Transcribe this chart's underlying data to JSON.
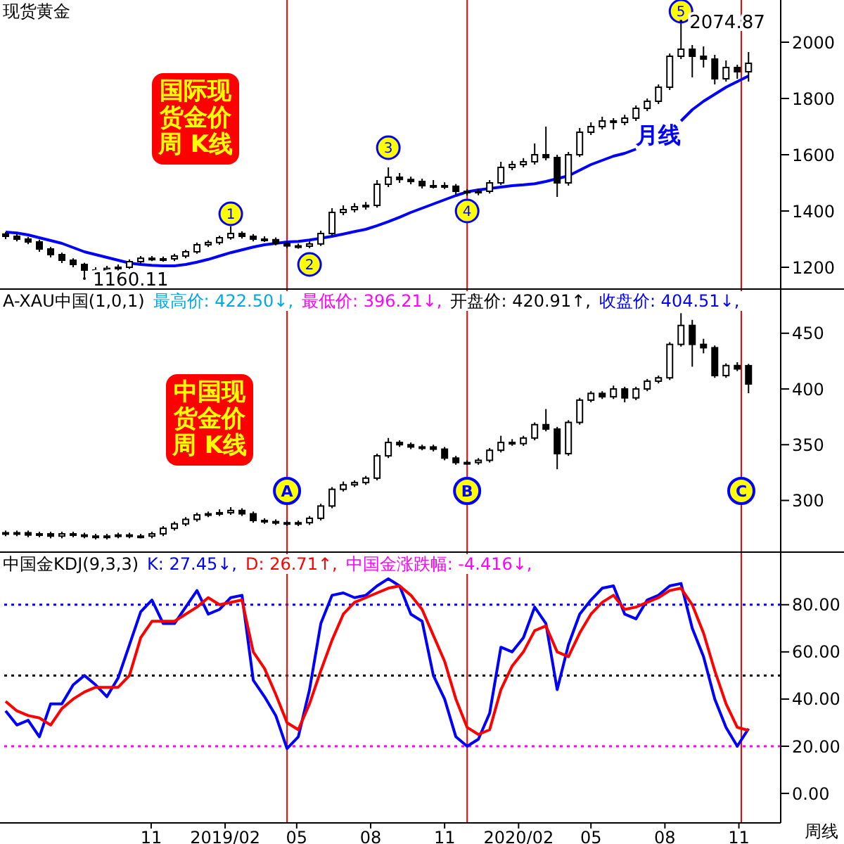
{
  "chart_data": [
    {
      "type": "candlestick",
      "title": "现货黄金",
      "subtitle": "国际现货金价周 K线",
      "color": "#000000",
      "tick_labels": "y",
      "x": [
        "2018-05-04",
        "2018-05-18",
        "2018-06-01",
        "2018-06-15",
        "2018-06-29",
        "2018-07-13",
        "2018-07-27",
        "2018-08-10",
        "2018-08-24",
        "2018-09-07",
        "2018-09-21",
        "2018-10-05",
        "2018-10-19",
        "2018-11-02",
        "2018-11-16",
        "2018-11-30",
        "2018-12-14",
        "2018-12-28",
        "2019-01-11",
        "2019-01-25",
        "2019-02-08",
        "2019-02-22",
        "2019-03-08",
        "2019-03-22",
        "2019-04-05",
        "2019-04-19",
        "2019-05-03",
        "2019-05-17",
        "2019-05-31",
        "2019-06-14",
        "2019-06-28",
        "2019-07-12",
        "2019-07-26",
        "2019-08-09",
        "2019-08-23",
        "2019-09-06",
        "2019-09-20",
        "2019-10-04",
        "2019-10-18",
        "2019-11-01",
        "2019-11-15",
        "2019-11-29",
        "2019-12-13",
        "2019-12-27",
        "2020-01-10",
        "2020-01-24",
        "2020-02-07",
        "2020-02-21",
        "2020-03-06",
        "2020-03-20",
        "2020-04-03",
        "2020-04-17",
        "2020-05-01",
        "2020-05-15",
        "2020-05-29",
        "2020-06-12",
        "2020-06-26",
        "2020-07-10",
        "2020-07-24",
        "2020-08-07",
        "2020-08-21",
        "2020-09-04",
        "2020-09-18",
        "2020-10-02",
        "2020-10-16",
        "2020-10-30",
        "2020-11-13"
      ],
      "ohlc": [
        [
          1318,
          1325,
          1300,
          1310
        ],
        [
          1310,
          1318,
          1292,
          1300
        ],
        [
          1300,
          1308,
          1282,
          1290
        ],
        [
          1290,
          1298,
          1255,
          1265
        ],
        [
          1265,
          1272,
          1235,
          1245
        ],
        [
          1245,
          1252,
          1215,
          1225
        ],
        [
          1225,
          1232,
          1200,
          1210
        ],
        [
          1210,
          1216,
          1160.11,
          1190
        ],
        [
          1190,
          1200,
          1180,
          1190
        ],
        [
          1190,
          1205,
          1185,
          1196
        ],
        [
          1196,
          1210,
          1188,
          1200
        ],
        [
          1200,
          1228,
          1194,
          1220
        ],
        [
          1220,
          1240,
          1212,
          1232
        ],
        [
          1232,
          1240,
          1222,
          1230
        ],
        [
          1230,
          1238,
          1220,
          1230
        ],
        [
          1230,
          1248,
          1222,
          1240
        ],
        [
          1240,
          1262,
          1232,
          1255
        ],
        [
          1255,
          1288,
          1248,
          1280
        ],
        [
          1280,
          1296,
          1272,
          1288
        ],
        [
          1288,
          1312,
          1280,
          1305
        ],
        [
          1305,
          1346,
          1298,
          1320
        ],
        [
          1320,
          1328,
          1302,
          1310
        ],
        [
          1310,
          1318,
          1292,
          1300
        ],
        [
          1300,
          1310,
          1290,
          1298
        ],
        [
          1298,
          1306,
          1278,
          1285
        ],
        [
          1285,
          1292,
          1268,
          1276
        ],
        [
          1276,
          1284,
          1266,
          1275
        ],
        [
          1275,
          1292,
          1268,
          1283
        ],
        [
          1283,
          1330,
          1276,
          1320
        ],
        [
          1320,
          1410,
          1312,
          1395
        ],
        [
          1395,
          1420,
          1385,
          1405
        ],
        [
          1405,
          1428,
          1395,
          1415
        ],
        [
          1415,
          1432,
          1405,
          1420
        ],
        [
          1420,
          1510,
          1412,
          1495
        ],
        [
          1495,
          1555,
          1485,
          1520
        ],
        [
          1520,
          1535,
          1500,
          1512
        ],
        [
          1512,
          1522,
          1495,
          1505
        ],
        [
          1505,
          1515,
          1480,
          1490
        ],
        [
          1490,
          1510,
          1480,
          1490
        ],
        [
          1490,
          1502,
          1478,
          1488
        ],
        [
          1488,
          1496,
          1458,
          1470
        ],
        [
          1470,
          1478,
          1455,
          1465
        ],
        [
          1465,
          1480,
          1456,
          1470
        ],
        [
          1470,
          1510,
          1462,
          1500
        ],
        [
          1500,
          1575,
          1492,
          1555
        ],
        [
          1555,
          1578,
          1545,
          1565
        ],
        [
          1565,
          1588,
          1555,
          1575
        ],
        [
          1575,
          1640,
          1565,
          1600
        ],
        [
          1600,
          1700,
          1580,
          1590
        ],
        [
          1590,
          1600,
          1450,
          1500
        ],
        [
          1500,
          1610,
          1490,
          1600
        ],
        [
          1600,
          1695,
          1592,
          1680
        ],
        [
          1680,
          1715,
          1670,
          1700
        ],
        [
          1700,
          1735,
          1690,
          1720
        ],
        [
          1720,
          1730,
          1690,
          1715
        ],
        [
          1715,
          1742,
          1705,
          1730
        ],
        [
          1730,
          1775,
          1720,
          1765
        ],
        [
          1765,
          1800,
          1755,
          1790
        ],
        [
          1790,
          1850,
          1780,
          1840
        ],
        [
          1840,
          1960,
          1830,
          1950
        ],
        [
          1950,
          2074.87,
          1940,
          1975
        ],
        [
          1975,
          1990,
          1875,
          1950
        ],
        [
          1950,
          1985,
          1910,
          1940
        ],
        [
          1940,
          1955,
          1850,
          1870
        ],
        [
          1870,
          1935,
          1860,
          1910
        ],
        [
          1910,
          1920,
          1870,
          1895
        ],
        [
          1895,
          1965,
          1860,
          1925
        ]
      ],
      "series": [
        {
          "type": "line",
          "name": "月线",
          "color": "#0000ff",
          "values": [
            1325,
            1322,
            1315,
            1305,
            1295,
            1285,
            1270,
            1255,
            1245,
            1235,
            1225,
            1215,
            1210,
            1207,
            1205,
            1205,
            1210,
            1218,
            1228,
            1240,
            1252,
            1262,
            1272,
            1280,
            1285,
            1290,
            1292,
            1297,
            1303,
            1310,
            1318,
            1327,
            1335,
            1348,
            1362,
            1378,
            1395,
            1410,
            1425,
            1440,
            1455,
            1468,
            1475,
            1480,
            1485,
            1490,
            1493,
            1497,
            1505,
            1515,
            1525,
            1545,
            1565,
            1580,
            1595,
            1605,
            1620,
            null,
            null,
            null,
            1720,
            1760,
            1790,
            1815,
            1840,
            1860,
            1880
          ]
        }
      ],
      "xlim": [
        "2018-04-27",
        "2020-12-23"
      ],
      "ylim": [
        1125,
        2150
      ],
      "yticks": [
        1200,
        1400,
        1600,
        1800,
        2000
      ],
      "ref_lines": [
        {
          "axis": "x",
          "value": "2019-04-19",
          "color": "#ff0000"
        },
        {
          "axis": "x",
          "value": "2019-11-29",
          "color": "#ff0000"
        },
        {
          "axis": "x",
          "value": "2020-11-04",
          "color": "#ff0000"
        }
      ],
      "annotations": [
        {
          "text": "1",
          "x": "2019-02-08",
          "y": 1390
        },
        {
          "text": "2",
          "x": "2019-05-17",
          "y": 1210
        },
        {
          "text": "3",
          "x": "2019-08-23",
          "y": 1625
        },
        {
          "text": "4",
          "x": "2019-11-29",
          "y": 1400
        },
        {
          "text": "5",
          "x": "2020-08-21",
          "y": 2110
        },
        {
          "text": "2074.87",
          "x": "2020-08-21",
          "y": 2074.87
        },
        {
          "text": "1160.11",
          "x": "2018-08-10",
          "y": 1160.11
        }
      ]
    },
    {
      "type": "candlestick",
      "title": "A-XAU中国(1,0,1)",
      "subtitle": "中国现货金价周 K线",
      "color": "#000000",
      "tick_labels": "y",
      "x": [
        "2018-05-04",
        "2018-05-18",
        "2018-06-01",
        "2018-06-15",
        "2018-06-29",
        "2018-07-13",
        "2018-07-27",
        "2018-08-10",
        "2018-08-24",
        "2018-09-07",
        "2018-09-21",
        "2018-10-05",
        "2018-10-19",
        "2018-11-02",
        "2018-11-16",
        "2018-11-30",
        "2018-12-14",
        "2018-12-28",
        "2019-01-11",
        "2019-01-25",
        "2019-02-08",
        "2019-02-22",
        "2019-03-08",
        "2019-03-22",
        "2019-04-05",
        "2019-04-19",
        "2019-05-03",
        "2019-05-17",
        "2019-05-31",
        "2019-06-14",
        "2019-06-28",
        "2019-07-12",
        "2019-07-26",
        "2019-08-09",
        "2019-08-23",
        "2019-09-06",
        "2019-09-20",
        "2019-10-04",
        "2019-10-18",
        "2019-11-01",
        "2019-11-15",
        "2019-11-29",
        "2019-12-13",
        "2019-12-27",
        "2020-01-10",
        "2020-01-24",
        "2020-02-07",
        "2020-02-21",
        "2020-03-06",
        "2020-03-20",
        "2020-04-03",
        "2020-04-17",
        "2020-05-01",
        "2020-05-15",
        "2020-05-29",
        "2020-06-12",
        "2020-06-26",
        "2020-07-10",
        "2020-07-24",
        "2020-08-07",
        "2020-08-21",
        "2020-09-04",
        "2020-09-18",
        "2020-10-02",
        "2020-10-16",
        "2020-10-30",
        "2020-11-13"
      ],
      "ohlc": [
        [
          271,
          273,
          268,
          270
        ],
        [
          270,
          273,
          268,
          271
        ],
        [
          271,
          273,
          267,
          269
        ],
        [
          269,
          272,
          267,
          270
        ],
        [
          270,
          272,
          266,
          268
        ],
        [
          268,
          272,
          266,
          270
        ],
        [
          270,
          272,
          267,
          269
        ],
        [
          269,
          271,
          266,
          268
        ],
        [
          268,
          270,
          265,
          267
        ],
        [
          267,
          270,
          265,
          268
        ],
        [
          268,
          271,
          266,
          269
        ],
        [
          269,
          271,
          266,
          268
        ],
        [
          268,
          270,
          266,
          268
        ],
        [
          268,
          272,
          266,
          270
        ],
        [
          270,
          277,
          268,
          275
        ],
        [
          275,
          281,
          273,
          279
        ],
        [
          279,
          285,
          277,
          283
        ],
        [
          283,
          289,
          281,
          287
        ],
        [
          287,
          290,
          285,
          288
        ],
        [
          288,
          292,
          286,
          289
        ],
        [
          289,
          294,
          287,
          291
        ],
        [
          291,
          293,
          286,
          288
        ],
        [
          288,
          290,
          280,
          282
        ],
        [
          282,
          284,
          279,
          281
        ],
        [
          281,
          283,
          278,
          280
        ],
        [
          280,
          282,
          277,
          279
        ],
        [
          279,
          282,
          277,
          280
        ],
        [
          280,
          286,
          278,
          284
        ],
        [
          284,
          297,
          282,
          295
        ],
        [
          295,
          312,
          293,
          310
        ],
        [
          310,
          317,
          308,
          314
        ],
        [
          314,
          318,
          312,
          316
        ],
        [
          316,
          322,
          314,
          320
        ],
        [
          320,
          342,
          318,
          340
        ],
        [
          340,
          356,
          338,
          352
        ],
        [
          352,
          354,
          348,
          350
        ],
        [
          350,
          352,
          346,
          348
        ],
        [
          348,
          350,
          345,
          348
        ],
        [
          348,
          350,
          344,
          346
        ],
        [
          346,
          348,
          336,
          338
        ],
        [
          338,
          340,
          332,
          334
        ],
        [
          334,
          336,
          332,
          334
        ],
        [
          334,
          338,
          332,
          336
        ],
        [
          336,
          347,
          334,
          345
        ],
        [
          345,
          358,
          343,
          352
        ],
        [
          352,
          355,
          349,
          351
        ],
        [
          351,
          358,
          349,
          356
        ],
        [
          356,
          370,
          354,
          368
        ],
        [
          368,
          382,
          362,
          364
        ],
        [
          364,
          366,
          328,
          342
        ],
        [
          342,
          372,
          340,
          370
        ],
        [
          370,
          392,
          368,
          390
        ],
        [
          390,
          398,
          388,
          396
        ],
        [
          396,
          398,
          391,
          393
        ],
        [
          393,
          403,
          391,
          400
        ],
        [
          400,
          402,
          388,
          392
        ],
        [
          392,
          402,
          390,
          400
        ],
        [
          400,
          409,
          398,
          407
        ],
        [
          407,
          412,
          405,
          410
        ],
        [
          410,
          442,
          408,
          440
        ],
        [
          440,
          468,
          438,
          457
        ],
        [
          457,
          462,
          420,
          440
        ],
        [
          440,
          445,
          432,
          437
        ],
        [
          437,
          439,
          410,
          412
        ],
        [
          412,
          423,
          410,
          421
        ],
        [
          421,
          424,
          416,
          418
        ],
        [
          420.91,
          422.5,
          396.21,
          404.51
        ]
      ],
      "xlim": [
        "2018-04-27",
        "2020-12-23"
      ],
      "ylim": [
        253,
        489
      ],
      "yticks": [
        300,
        350,
        400,
        450
      ],
      "ref_lines": [
        {
          "axis": "x",
          "value": "2019-04-19",
          "label": "A",
          "color": "#ff0000"
        },
        {
          "axis": "x",
          "value": "2019-11-29",
          "label": "B",
          "color": "#ff0000"
        },
        {
          "axis": "x",
          "value": "2020-11-04",
          "label": "C",
          "color": "#ff0000"
        }
      ],
      "annotations": [
        "最高价: 422.50↓,",
        "最低价: 396.21↓,",
        "开盘价: 420.91↑,",
        "收盘价: 404.51↓,"
      ]
    },
    {
      "type": "line",
      "title": "中国金KDJ(9,3,3)",
      "xlabel": "周线",
      "x": [
        "2018-05-04",
        "2018-05-18",
        "2018-06-01",
        "2018-06-15",
        "2018-06-29",
        "2018-07-13",
        "2018-07-27",
        "2018-08-10",
        "2018-08-24",
        "2018-09-07",
        "2018-09-21",
        "2018-10-05",
        "2018-10-19",
        "2018-11-02",
        "2018-11-16",
        "2018-11-30",
        "2018-12-14",
        "2018-12-28",
        "2019-01-11",
        "2019-01-25",
        "2019-02-08",
        "2019-02-22",
        "2019-03-08",
        "2019-03-22",
        "2019-04-05",
        "2019-04-19",
        "2019-05-03",
        "2019-05-17",
        "2019-05-31",
        "2019-06-14",
        "2019-06-28",
        "2019-07-12",
        "2019-07-26",
        "2019-08-09",
        "2019-08-23",
        "2019-09-06",
        "2019-09-20",
        "2019-10-04",
        "2019-10-18",
        "2019-11-01",
        "2019-11-15",
        "2019-11-29",
        "2019-12-13",
        "2019-12-27",
        "2020-01-10",
        "2020-01-24",
        "2020-02-07",
        "2020-02-21",
        "2020-03-06",
        "2020-03-20",
        "2020-04-03",
        "2020-04-17",
        "2020-05-01",
        "2020-05-15",
        "2020-05-29",
        "2020-06-12",
        "2020-06-26",
        "2020-07-10",
        "2020-07-24",
        "2020-08-07",
        "2020-08-21",
        "2020-09-04",
        "2020-09-18",
        "2020-10-02",
        "2020-10-16",
        "2020-10-30",
        "2020-11-13"
      ],
      "series": [
        {
          "color": "#0000ff",
          "values": [
            35,
            29,
            31,
            24,
            38,
            38,
            46,
            50,
            46,
            41,
            49,
            63,
            77,
            82,
            72,
            72,
            79,
            86,
            76,
            78,
            83,
            84,
            48,
            41,
            33,
            19,
            24,
            44,
            72,
            84,
            85,
            83,
            84,
            88,
            91,
            88,
            76,
            73,
            50,
            40,
            24,
            20,
            23,
            34,
            62,
            60,
            66,
            79,
            72,
            44,
            63,
            76,
            82,
            87,
            88,
            76,
            74,
            82,
            84,
            88,
            89,
            70,
            58,
            40,
            28,
            20,
            27.45
          ]
        },
        {
          "color": "#ff0000",
          "values": [
            39,
            35,
            33,
            32,
            29,
            36,
            40,
            43,
            45,
            45,
            45,
            50,
            66,
            73,
            73,
            73,
            76,
            79,
            83,
            80,
            81,
            82,
            60,
            53,
            42,
            30,
            27,
            38,
            52,
            65,
            76,
            81,
            83,
            85,
            87,
            88,
            84,
            78,
            67,
            56,
            40,
            28,
            25,
            27,
            44,
            54,
            60,
            69,
            71,
            60,
            58,
            68,
            76,
            81,
            84,
            78,
            79,
            81,
            83,
            86,
            87,
            80,
            68,
            52,
            38,
            28,
            26.71
          ]
        }
      ],
      "xlim": [
        "2018-04-27",
        "2020-12-23"
      ],
      "ylim": [
        -12.5,
        102
      ],
      "xticks": [
        {
          "value": "2018-11-01",
          "label": "11"
        },
        {
          "value": "2019-02-01",
          "label": "2019/02"
        },
        {
          "value": "2019-05-01",
          "label": "05"
        },
        {
          "value": "2019-08-01",
          "label": "08"
        },
        {
          "value": "2019-11-01",
          "label": "11"
        },
        {
          "value": "2020-02-01",
          "label": "2020/02"
        },
        {
          "value": "2020-05-01",
          "label": "05"
        },
        {
          "value": "2020-08-01",
          "label": "08"
        },
        {
          "value": "2020-11-01",
          "label": "11"
        }
      ],
      "yticks": [
        {
          "value": 0,
          "label": "0.00"
        },
        {
          "value": 20,
          "label": "20.00"
        },
        {
          "value": 40,
          "label": "40.00"
        },
        {
          "value": 60,
          "label": "60.00"
        },
        {
          "value": 80,
          "label": "80.00"
        }
      ],
      "ref_lines": [
        {
          "axis": "y",
          "value": 80,
          "color": "#0000ff",
          "line_style": "dotted"
        },
        {
          "axis": "y",
          "value": 50,
          "color": "#000000",
          "line_style": "dotted"
        },
        {
          "axis": "y",
          "value": 20,
          "color": "#ff00ff",
          "line_style": "dotted"
        },
        {
          "axis": "x",
          "value": "2019-04-19",
          "color": "#ff0000"
        },
        {
          "axis": "x",
          "value": "2019-11-29",
          "color": "#ff0000"
        },
        {
          "axis": "x",
          "value": "2020-11-04",
          "color": "#ff0000"
        }
      ],
      "annotations": [
        "K: 27.45↓,",
        "D: 26.71↑,",
        "中国金涨跌幅: -4.416↓,"
      ]
    }
  ]
}
